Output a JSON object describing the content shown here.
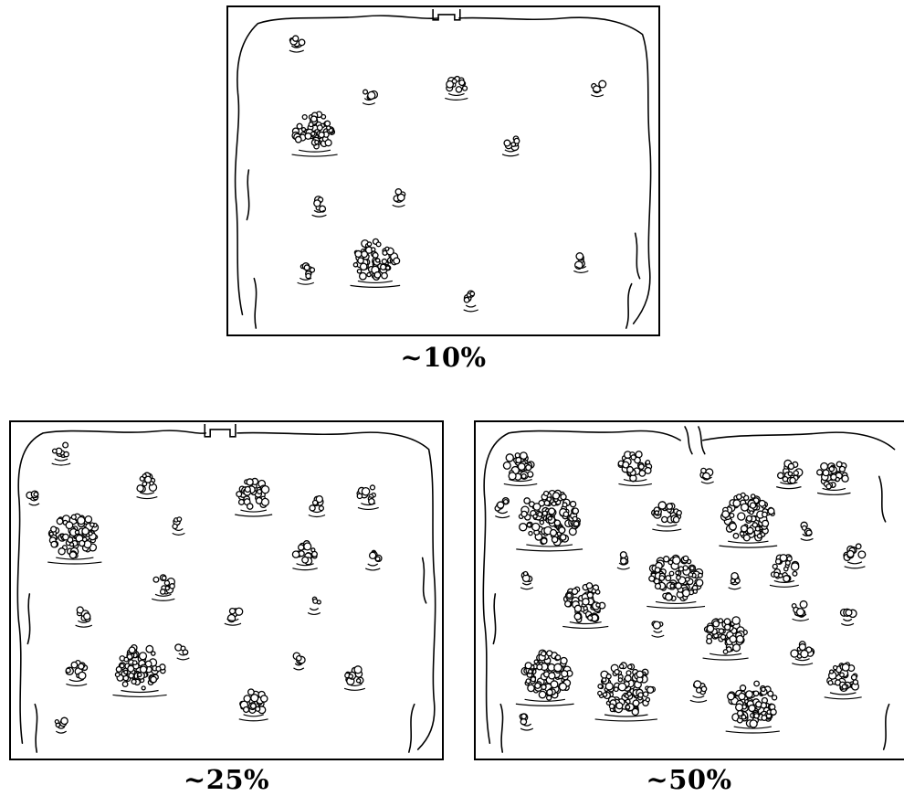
{
  "panels": [
    {
      "caption": "~10%"
    },
    {
      "caption": "~25%"
    },
    {
      "caption": "~50%"
    }
  ]
}
